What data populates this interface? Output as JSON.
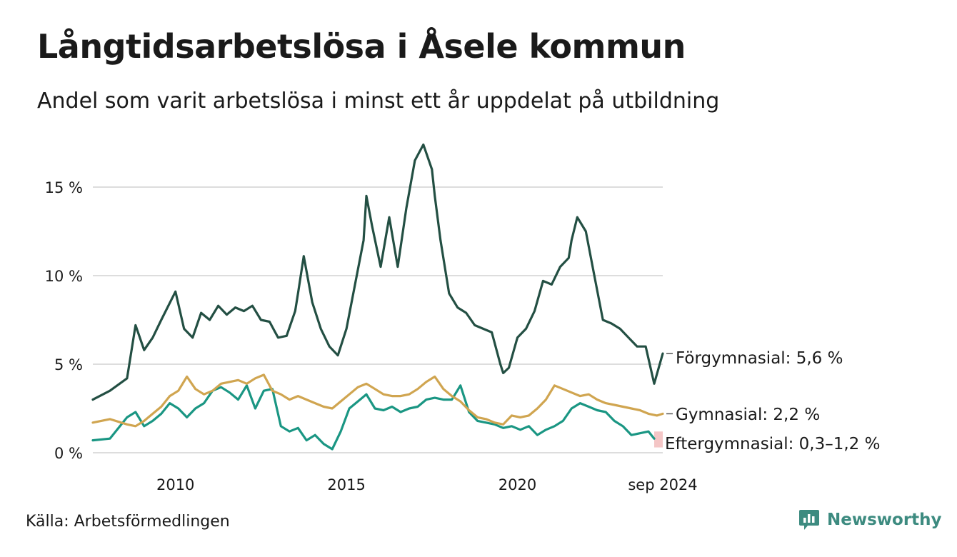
{
  "header": {
    "title": "Långtidsarbetslösa i Åsele kommun",
    "subtitle": "Andel som varit arbetslösa i minst ett år uppdelat på utbildning"
  },
  "footer": {
    "source": "Källa: Arbetsförmedlingen",
    "brand": "Newsworthy",
    "brand_icon": "bar-chart-speech-bubble-icon"
  },
  "colors": {
    "forgymnasial": "#234f43",
    "gymnasial": "#d0a550",
    "eftergymnasial": "#1a9683",
    "uncertainty_band": "#f4c6c6",
    "grid": "#dddddd",
    "brand": "#3d8b80"
  },
  "chart_data": {
    "type": "line",
    "title": "Långtidsarbetslösa i Åsele kommun",
    "subtitle": "Andel som varit arbetslösa i minst ett år uppdelat på utbildning",
    "ylim": [
      0,
      17.5
    ],
    "xlim": [
      "2008-01",
      "2024-09"
    ],
    "grid": true,
    "y_ticks": [
      {
        "value": 0,
        "label": "0 %"
      },
      {
        "value": 5,
        "label": "5 %"
      },
      {
        "value": 10,
        "label": "10 %"
      },
      {
        "value": 15,
        "label": "15 %"
      }
    ],
    "x_ticks": [
      {
        "date": "2010-06",
        "label": "2010"
      },
      {
        "date": "2015-06",
        "label": "2015"
      },
      {
        "date": "2020-06",
        "label": "2020"
      },
      {
        "date": "2024-09",
        "label": "sep 2024"
      }
    ],
    "series": [
      {
        "name": "Förgymnasial",
        "end_label": "Förgymnasial: 5,6 %",
        "x": [
          "2008-01",
          "2008-07",
          "2009-01",
          "2009-04",
          "2009-07",
          "2009-10",
          "2010-01",
          "2010-06",
          "2010-09",
          "2010-12",
          "2011-03",
          "2011-06",
          "2011-09",
          "2011-12",
          "2012-03",
          "2012-06",
          "2012-09",
          "2012-12",
          "2013-03",
          "2013-06",
          "2013-09",
          "2013-12",
          "2014-01",
          "2014-03",
          "2014-06",
          "2014-09",
          "2014-12",
          "2015-03",
          "2015-06",
          "2015-09",
          "2015-12",
          "2016-01",
          "2016-03",
          "2016-06",
          "2016-09",
          "2016-12",
          "2017-03",
          "2017-06",
          "2017-09",
          "2017-12",
          "2018-01",
          "2018-03",
          "2018-06",
          "2018-09",
          "2018-12",
          "2019-03",
          "2019-06",
          "2019-09",
          "2019-12",
          "2020-01",
          "2020-03",
          "2020-06",
          "2020-09",
          "2020-12",
          "2021-03",
          "2021-06",
          "2021-09",
          "2021-12",
          "2022-01",
          "2022-03",
          "2022-06",
          "2022-09",
          "2022-12",
          "2023-03",
          "2023-06",
          "2023-09",
          "2023-12",
          "2024-03",
          "2024-06",
          "2024-09"
        ],
        "values": [
          3.0,
          3.5,
          4.2,
          7.2,
          5.8,
          6.5,
          7.5,
          9.1,
          7.0,
          6.5,
          7.9,
          7.5,
          8.3,
          7.8,
          8.2,
          8.0,
          8.3,
          7.5,
          7.4,
          6.5,
          6.6,
          8.0,
          9.0,
          11.1,
          8.5,
          7.0,
          6.0,
          5.5,
          7.0,
          9.5,
          12.0,
          14.5,
          12.8,
          10.5,
          13.3,
          10.5,
          13.8,
          16.5,
          17.4,
          16.0,
          14.5,
          12.0,
          9.0,
          8.2,
          7.9,
          7.2,
          7.0,
          6.8,
          5.0,
          4.5,
          4.8,
          6.5,
          7.0,
          8.0,
          9.7,
          9.5,
          10.5,
          11.0,
          12.0,
          13.3,
          12.5,
          10.0,
          7.5,
          7.3,
          7.0,
          6.5,
          6.0,
          6.0,
          3.9,
          5.6
        ]
      },
      {
        "name": "Gymnasial",
        "end_label": "Gymnasial: 2,2 %",
        "x": [
          "2008-01",
          "2008-07",
          "2009-01",
          "2009-04",
          "2009-07",
          "2009-10",
          "2010-01",
          "2010-04",
          "2010-07",
          "2010-10",
          "2011-01",
          "2011-04",
          "2011-07",
          "2011-10",
          "2012-01",
          "2012-04",
          "2012-07",
          "2012-10",
          "2013-01",
          "2013-04",
          "2013-07",
          "2013-10",
          "2014-01",
          "2014-04",
          "2014-07",
          "2014-10",
          "2015-01",
          "2015-04",
          "2015-07",
          "2015-10",
          "2016-01",
          "2016-04",
          "2016-07",
          "2016-10",
          "2017-01",
          "2017-04",
          "2017-07",
          "2017-10",
          "2018-01",
          "2018-04",
          "2018-07",
          "2018-10",
          "2019-01",
          "2019-04",
          "2019-07",
          "2019-10",
          "2020-01",
          "2020-04",
          "2020-07",
          "2020-10",
          "2021-01",
          "2021-04",
          "2021-07",
          "2021-10",
          "2022-01",
          "2022-04",
          "2022-07",
          "2022-10",
          "2023-01",
          "2023-04",
          "2023-07",
          "2023-10",
          "2024-01",
          "2024-04",
          "2024-07",
          "2024-09"
        ],
        "values": [
          1.7,
          1.9,
          1.6,
          1.5,
          1.8,
          2.2,
          2.6,
          3.2,
          3.5,
          4.3,
          3.6,
          3.3,
          3.5,
          3.9,
          4.0,
          4.1,
          3.9,
          4.2,
          4.4,
          3.5,
          3.3,
          3.0,
          3.2,
          3.0,
          2.8,
          2.6,
          2.5,
          2.9,
          3.3,
          3.7,
          3.9,
          3.6,
          3.3,
          3.2,
          3.2,
          3.3,
          3.6,
          4.0,
          4.3,
          3.6,
          3.2,
          2.9,
          2.4,
          2.0,
          1.9,
          1.7,
          1.6,
          2.1,
          2.0,
          2.1,
          2.5,
          3.0,
          3.8,
          3.6,
          3.4,
          3.2,
          3.3,
          3.0,
          2.8,
          2.7,
          2.6,
          2.5,
          2.4,
          2.2,
          2.1,
          2.2
        ]
      },
      {
        "name": "Eftergymnasial",
        "end_label": "Eftergymnasial: 0,3–1,2 %",
        "range_at_end": [
          0.3,
          1.2
        ],
        "x": [
          "2008-01",
          "2008-07",
          "2009-01",
          "2009-04",
          "2009-07",
          "2009-10",
          "2010-01",
          "2010-04",
          "2010-07",
          "2010-10",
          "2011-01",
          "2011-04",
          "2011-07",
          "2011-10",
          "2012-01",
          "2012-04",
          "2012-07",
          "2012-10",
          "2013-01",
          "2013-04",
          "2013-07",
          "2013-10",
          "2014-01",
          "2014-04",
          "2014-07",
          "2014-10",
          "2015-01",
          "2015-04",
          "2015-07",
          "2015-10",
          "2016-01",
          "2016-04",
          "2016-07",
          "2016-10",
          "2017-01",
          "2017-04",
          "2017-07",
          "2017-10",
          "2018-01",
          "2018-04",
          "2018-07",
          "2018-10",
          "2019-01",
          "2019-04",
          "2019-07",
          "2019-10",
          "2020-01",
          "2020-04",
          "2020-07",
          "2020-10",
          "2021-01",
          "2021-04",
          "2021-07",
          "2021-10",
          "2022-01",
          "2022-04",
          "2022-07",
          "2022-10",
          "2023-01",
          "2023-04",
          "2023-07",
          "2023-10",
          "2024-01",
          "2024-04",
          "2024-06"
        ],
        "values": [
          0.7,
          0.8,
          2.0,
          2.3,
          1.5,
          1.8,
          2.2,
          2.8,
          2.5,
          2.0,
          2.5,
          2.8,
          3.5,
          3.7,
          3.4,
          3.0,
          3.8,
          2.5,
          3.5,
          3.6,
          1.5,
          1.2,
          1.4,
          0.7,
          1.0,
          0.5,
          0.2,
          1.2,
          2.5,
          2.9,
          3.3,
          2.5,
          2.4,
          2.6,
          2.3,
          2.5,
          2.6,
          3.0,
          3.1,
          3.0,
          3.0,
          3.8,
          2.3,
          1.8,
          1.7,
          1.6,
          1.4,
          1.5,
          1.3,
          1.5,
          1.0,
          1.3,
          1.5,
          1.8,
          2.5,
          2.8,
          2.6,
          2.4,
          2.3,
          1.8,
          1.5,
          1.0,
          1.1,
          1.2,
          0.8
        ]
      }
    ]
  }
}
